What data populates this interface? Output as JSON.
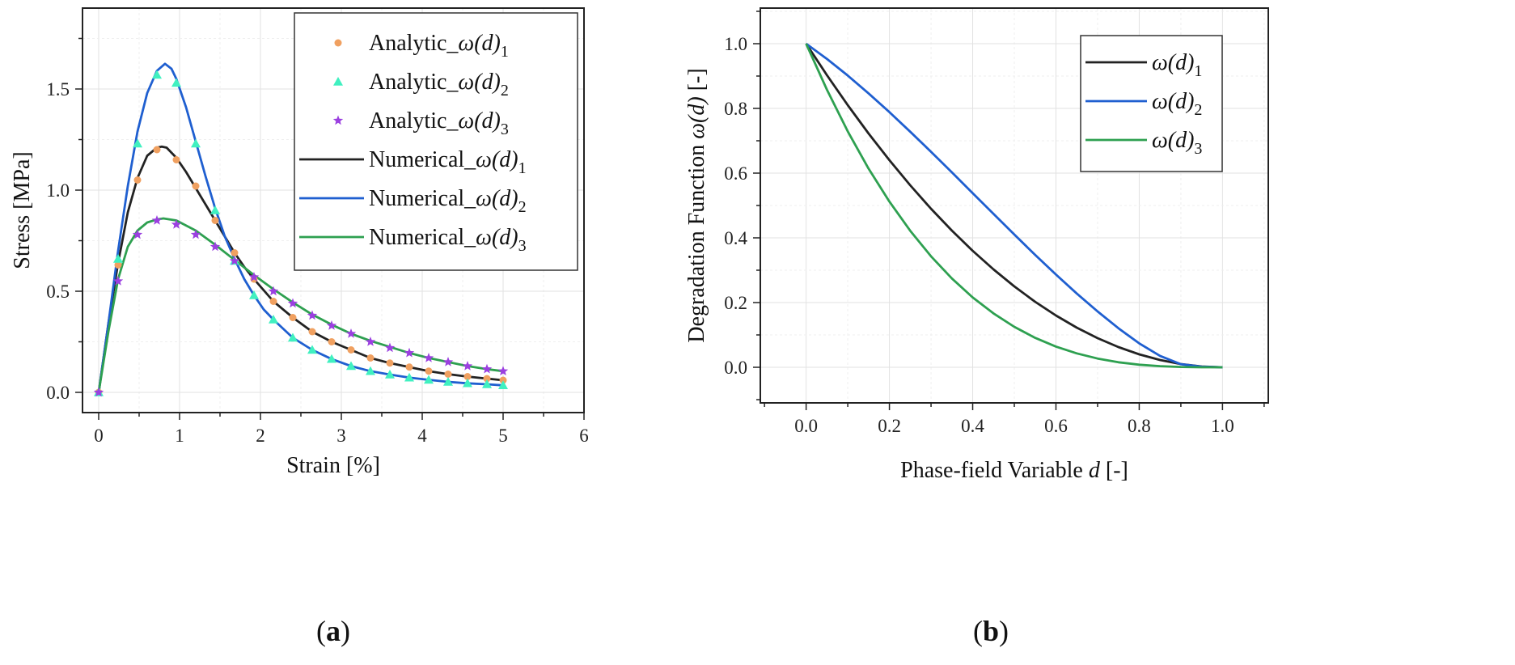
{
  "chart_data": [
    {
      "type": "line",
      "panel_label": "a",
      "xlabel": "Strain [%]",
      "ylabel": "Stress [MPa]",
      "xlim": [
        -0.2,
        6
      ],
      "ylim": [
        -0.1,
        1.9
      ],
      "xticks": [
        "0",
        "1",
        "2",
        "3",
        "4",
        "5",
        "6"
      ],
      "yticks": [
        "0.0",
        "0.5",
        "1.0",
        "1.5"
      ],
      "grid": true,
      "legend_position": "top-right",
      "series": [
        {
          "name_prefix": "Analytic_",
          "name_func": "ω(d)",
          "name_sub": "1",
          "style": "marker",
          "marker": "circle",
          "color": "#f0a060",
          "x": [
            0,
            0.24,
            0.48,
            0.72,
            0.96,
            1.2,
            1.44,
            1.68,
            1.92,
            2.16,
            2.4,
            2.64,
            2.88,
            3.12,
            3.36,
            3.6,
            3.84,
            4.08,
            4.32,
            4.56,
            4.8,
            5.0
          ],
          "y": [
            0,
            0.63,
            1.05,
            1.2,
            1.15,
            1.02,
            0.85,
            0.69,
            0.56,
            0.45,
            0.37,
            0.3,
            0.25,
            0.21,
            0.17,
            0.145,
            0.125,
            0.105,
            0.09,
            0.078,
            0.068,
            0.06
          ]
        },
        {
          "name_prefix": "Analytic_",
          "name_func": "ω(d)",
          "name_sub": "2",
          "style": "marker",
          "marker": "triangle",
          "color": "#40f0c0",
          "x": [
            0,
            0.24,
            0.48,
            0.72,
            0.96,
            1.2,
            1.44,
            1.68,
            1.92,
            2.16,
            2.4,
            2.64,
            2.88,
            3.12,
            3.36,
            3.6,
            3.84,
            4.08,
            4.32,
            4.56,
            4.8,
            5.0
          ],
          "y": [
            0,
            0.66,
            1.23,
            1.57,
            1.53,
            1.23,
            0.9,
            0.65,
            0.48,
            0.36,
            0.27,
            0.21,
            0.165,
            0.13,
            0.105,
            0.088,
            0.073,
            0.062,
            0.052,
            0.045,
            0.04,
            0.035
          ]
        },
        {
          "name_prefix": "Analytic_",
          "name_func": "ω(d)",
          "name_sub": "3",
          "style": "marker",
          "marker": "star",
          "color": "#9b40e0",
          "x": [
            0,
            0.24,
            0.48,
            0.72,
            0.96,
            1.2,
            1.44,
            1.68,
            1.92,
            2.16,
            2.4,
            2.64,
            2.88,
            3.12,
            3.36,
            3.6,
            3.84,
            4.08,
            4.32,
            4.56,
            4.8,
            5.0
          ],
          "y": [
            0,
            0.55,
            0.78,
            0.85,
            0.83,
            0.78,
            0.72,
            0.65,
            0.57,
            0.5,
            0.44,
            0.38,
            0.33,
            0.29,
            0.25,
            0.22,
            0.195,
            0.17,
            0.15,
            0.13,
            0.115,
            0.105
          ]
        },
        {
          "name_prefix": "Numerical_",
          "name_func": "ω(d)",
          "name_sub": "1",
          "style": "line",
          "color": "#222222",
          "x": [
            0,
            0.12,
            0.24,
            0.36,
            0.48,
            0.6,
            0.72,
            0.78,
            0.84,
            0.96,
            1.08,
            1.2,
            1.32,
            1.44,
            1.56,
            1.68,
            1.8,
            1.92,
            2.16,
            2.4,
            2.64,
            2.88,
            3.12,
            3.36,
            3.6,
            3.84,
            4.08,
            4.32,
            4.56,
            4.8,
            5.0
          ],
          "y": [
            0,
            0.34,
            0.64,
            0.89,
            1.06,
            1.17,
            1.21,
            1.215,
            1.21,
            1.16,
            1.09,
            1.01,
            0.93,
            0.85,
            0.77,
            0.69,
            0.62,
            0.56,
            0.45,
            0.37,
            0.3,
            0.25,
            0.21,
            0.17,
            0.145,
            0.125,
            0.105,
            0.09,
            0.078,
            0.068,
            0.06
          ]
        },
        {
          "name_prefix": "Numerical_",
          "name_func": "ω(d)",
          "name_sub": "2",
          "style": "line",
          "color": "#1f5fd0",
          "x": [
            0,
            0.12,
            0.24,
            0.36,
            0.48,
            0.6,
            0.72,
            0.82,
            0.9,
            0.96,
            1.08,
            1.2,
            1.32,
            1.44,
            1.56,
            1.68,
            1.8,
            1.92,
            2.04,
            2.16,
            2.4,
            2.64,
            2.88,
            3.12,
            3.36,
            3.6,
            3.84,
            4.08,
            4.32,
            4.56,
            4.8,
            5.0
          ],
          "y": [
            0,
            0.34,
            0.7,
            1.02,
            1.29,
            1.48,
            1.59,
            1.625,
            1.6,
            1.55,
            1.41,
            1.24,
            1.07,
            0.91,
            0.77,
            0.66,
            0.56,
            0.48,
            0.41,
            0.36,
            0.27,
            0.21,
            0.165,
            0.13,
            0.105,
            0.088,
            0.073,
            0.062,
            0.052,
            0.045,
            0.04,
            0.035
          ]
        },
        {
          "name_prefix": "Numerical_",
          "name_func": "ω(d)",
          "name_sub": "3",
          "style": "line",
          "color": "#2ea050",
          "x": [
            0,
            0.12,
            0.24,
            0.36,
            0.48,
            0.6,
            0.72,
            0.8,
            0.96,
            1.2,
            1.44,
            1.68,
            1.92,
            2.16,
            2.4,
            2.64,
            2.88,
            3.12,
            3.36,
            3.6,
            3.84,
            4.08,
            4.32,
            4.56,
            4.8,
            5.0
          ],
          "y": [
            0,
            0.3,
            0.56,
            0.72,
            0.8,
            0.84,
            0.855,
            0.86,
            0.85,
            0.8,
            0.73,
            0.655,
            0.58,
            0.51,
            0.445,
            0.385,
            0.335,
            0.29,
            0.255,
            0.225,
            0.195,
            0.17,
            0.15,
            0.13,
            0.115,
            0.105
          ]
        }
      ]
    },
    {
      "type": "line",
      "panel_label": "b",
      "xlabel_text": "Phase-field Variable ",
      "xlabel_var": "d",
      "xlabel_unit": " [-]",
      "ylabel_text": "Degradation Function ",
      "ylabel_var": "ω(d)",
      "ylabel_unit": " [-]",
      "xlim": [
        -0.11,
        1.11
      ],
      "ylim": [
        -0.11,
        1.11
      ],
      "xticks": [
        "0.0",
        "0.2",
        "0.4",
        "0.6",
        "0.8",
        "1.0"
      ],
      "yticks": [
        "0.0",
        "0.2",
        "0.4",
        "0.6",
        "0.8",
        "1.0"
      ],
      "grid": true,
      "legend_position": "top-right",
      "series": [
        {
          "name_func": "ω(d)",
          "name_sub": "1",
          "color": "#222222",
          "x": [
            0,
            0.05,
            0.1,
            0.15,
            0.2,
            0.25,
            0.3,
            0.35,
            0.4,
            0.45,
            0.5,
            0.55,
            0.6,
            0.65,
            0.7,
            0.75,
            0.8,
            0.85,
            0.9,
            0.95,
            1.0
          ],
          "y": [
            1.0,
            0.9025,
            0.81,
            0.7225,
            0.64,
            0.5625,
            0.49,
            0.4225,
            0.36,
            0.3025,
            0.25,
            0.2025,
            0.16,
            0.1225,
            0.09,
            0.0625,
            0.04,
            0.0225,
            0.01,
            0.0025,
            0.0
          ]
        },
        {
          "name_func": "ω(d)",
          "name_sub": "2",
          "color": "#1f5fd0",
          "x": [
            0,
            0.05,
            0.1,
            0.15,
            0.2,
            0.25,
            0.3,
            0.35,
            0.4,
            0.45,
            0.5,
            0.55,
            0.6,
            0.65,
            0.7,
            0.75,
            0.8,
            0.85,
            0.9,
            0.95,
            1.0
          ],
          "y": [
            1.0,
            0.9528,
            0.9015,
            0.8465,
            0.7885,
            0.7281,
            0.6659,
            0.6024,
            0.5382,
            0.474,
            0.4102,
            0.3475,
            0.2866,
            0.228,
            0.1725,
            0.1208,
            0.0741,
            0.0353,
            0.0094,
            0.0018,
            0.0
          ]
        },
        {
          "name_func": "ω(d)",
          "name_sub": "3",
          "color": "#2ea050",
          "x": [
            0,
            0.05,
            0.1,
            0.15,
            0.2,
            0.25,
            0.3,
            0.35,
            0.4,
            0.45,
            0.5,
            0.55,
            0.6,
            0.65,
            0.7,
            0.75,
            0.8,
            0.85,
            0.9,
            0.95,
            1.0
          ],
          "y": [
            1.0,
            0.8574,
            0.729,
            0.6141,
            0.512,
            0.4219,
            0.343,
            0.2746,
            0.216,
            0.1664,
            0.125,
            0.0911,
            0.064,
            0.0429,
            0.027,
            0.0156,
            0.008,
            0.0034,
            0.001,
            0.0001,
            0.0
          ]
        }
      ]
    }
  ]
}
